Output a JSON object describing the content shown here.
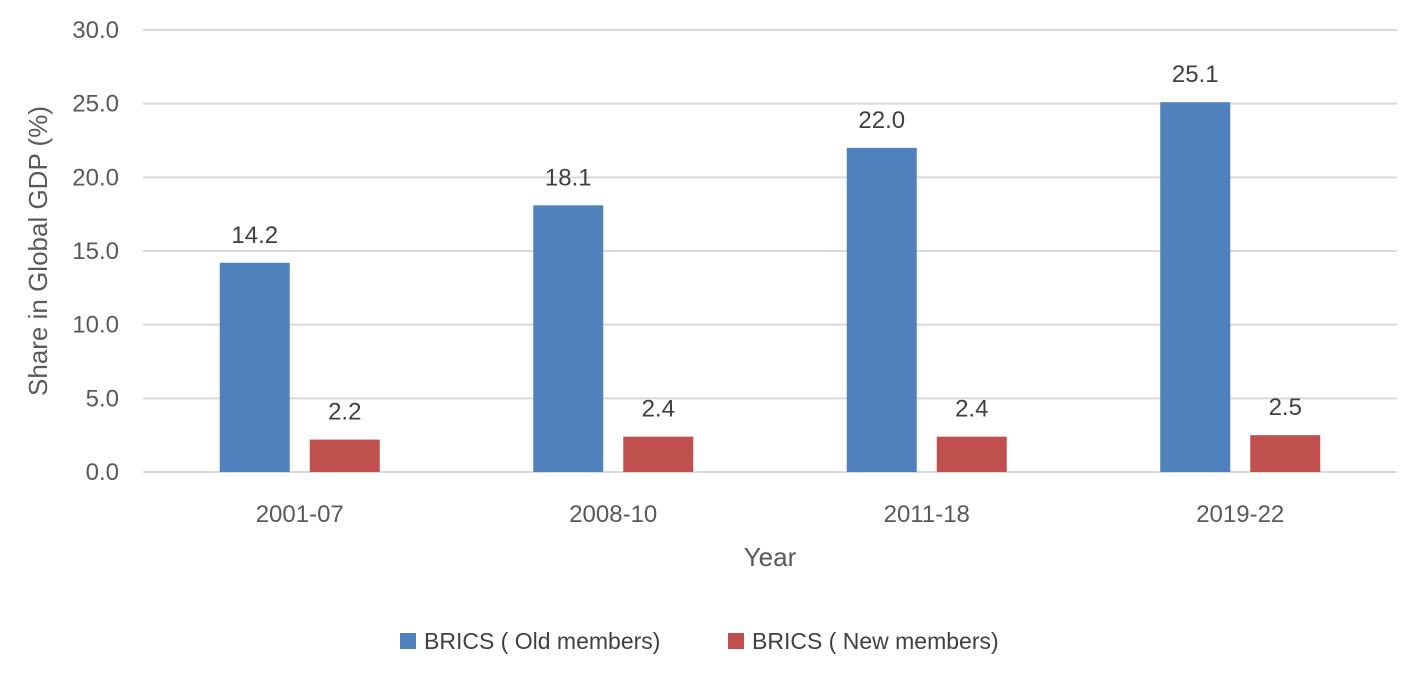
{
  "chart_data": {
    "type": "bar",
    "title": "",
    "xlabel": "Year",
    "ylabel": "Share in Global GDP (%)",
    "categories": [
      "2001-07",
      "2008-10",
      "2011-18",
      "2019-22"
    ],
    "series": [
      {
        "name": "BRICS ( Old members)",
        "color": "#4F81BD",
        "values": [
          14.2,
          18.1,
          22.0,
          25.1
        ],
        "labels": [
          "14.2",
          "18.1",
          "22.0",
          "25.1"
        ]
      },
      {
        "name": "BRICS ( New members)",
        "color": "#C0504D",
        "values": [
          2.2,
          2.4,
          2.4,
          2.5
        ],
        "labels": [
          "2.2",
          "2.4",
          "2.4",
          "2.5"
        ]
      }
    ],
    "ylim": [
      0,
      30
    ],
    "yticks": [
      0,
      5,
      10,
      15,
      20,
      25,
      30
    ],
    "ytick_labels": [
      "0.0",
      "5.0",
      "10.0",
      "15.0",
      "20.0",
      "25.0",
      "30.0"
    ],
    "grid": true,
    "gridline_color": "#D9D9D9",
    "legend_position": "bottom"
  }
}
